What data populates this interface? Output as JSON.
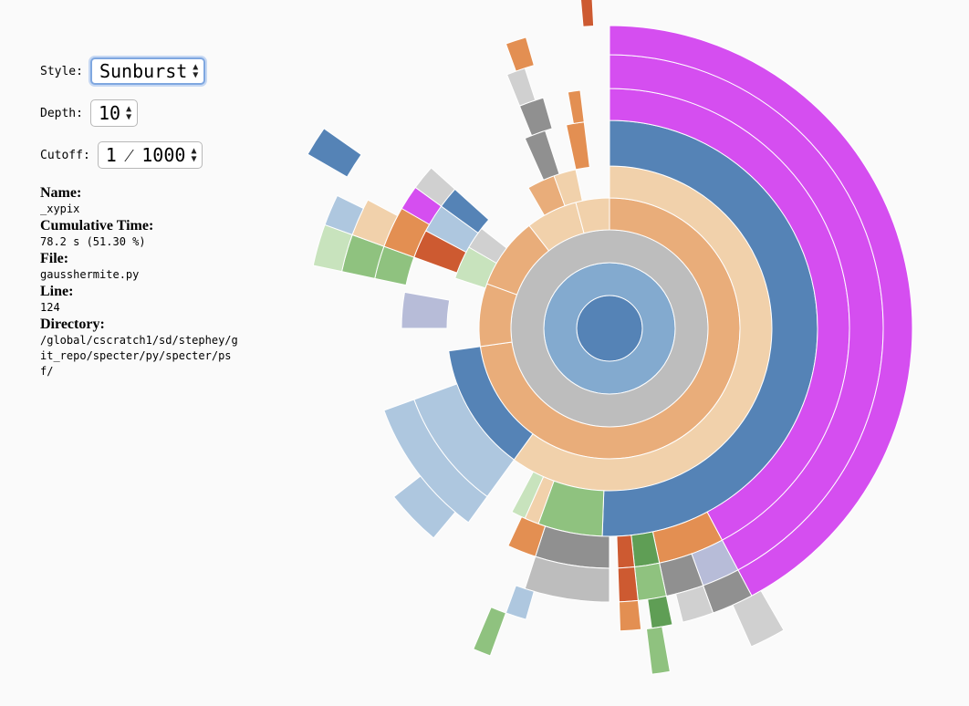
{
  "controls": {
    "style_label": "Style:",
    "style_value": "Sunburst",
    "depth_label": "Depth:",
    "depth_value": "10",
    "cutoff_label": "Cutoff:",
    "cutoff_value": "1 ⁄ 1000"
  },
  "info": {
    "name_label": "Name:",
    "name_value": "_xypix",
    "time_label": "Cumulative Time:",
    "time_value": "78.2 s (51.30 %)",
    "file_label": "File:",
    "file_value": "gausshermite.py",
    "line_label": "Line:",
    "line_value": "124",
    "dir_label": "Directory:",
    "dir_value": "/global/cscratch1/sd/stephey/git_repo/specter/py/specter/psf/"
  },
  "colors": {
    "root": "#5583b6",
    "ring1": "#83aacf",
    "gray": "#bdbdbd",
    "orange": "#e9ad7a",
    "peach": "#f1d1ab",
    "blue": "#5583b6",
    "magenta": "#d54ef0",
    "lightblue": "#aec7df",
    "green": "#8fc27f",
    "darkgray": "#909090",
    "lightgray": "#d0d0d0",
    "darkorange": "#e38f52",
    "red": "#cd5a31",
    "darkgreen": "#5f9e55",
    "lavender": "#b7bcd8",
    "purple": "#7a6fb3",
    "palegreen": "#c8e3bd"
  },
  "sunburst": {
    "segments": [
      {
        "depth": 0,
        "a0": 0,
        "a1": 360,
        "c": "root"
      },
      {
        "depth": 1,
        "a0": 0,
        "a1": 360,
        "c": "ring1"
      },
      {
        "depth": 2,
        "a0": 0,
        "a1": 360,
        "c": "gray"
      },
      {
        "depth": 3,
        "a0": 0,
        "a1": 262,
        "c": "orange"
      },
      {
        "depth": 3,
        "a0": 262,
        "a1": 290,
        "c": "orange"
      },
      {
        "depth": 3,
        "a0": 290,
        "a1": 322,
        "c": "orange"
      },
      {
        "depth": 3,
        "a0": 322,
        "a1": 345,
        "c": "peach"
      },
      {
        "depth": 3,
        "a0": 345,
        "a1": 360,
        "c": "peach"
      },
      {
        "depth": 4,
        "a0": 0,
        "a1": 216,
        "c": "peach"
      },
      {
        "depth": 4,
        "a0": 216,
        "a1": 262,
        "c": "blue"
      },
      {
        "depth": 4,
        "a0": 288,
        "a1": 300,
        "c": "palegreen"
      },
      {
        "depth": 4,
        "a0": 300,
        "a1": 308,
        "c": "lightgray"
      },
      {
        "depth": 4,
        "a0": 330,
        "a1": 340,
        "c": "orange"
      },
      {
        "depth": 4,
        "a0": 340,
        "a1": 348,
        "c": "peach"
      },
      {
        "depth": 5,
        "a0": 0,
        "a1": 182,
        "c": "blue"
      },
      {
        "depth": 5,
        "a0": 182,
        "a1": 200,
        "c": "green"
      },
      {
        "depth": 5,
        "a0": 200,
        "a1": 204,
        "c": "peach"
      },
      {
        "depth": 5,
        "a0": 204,
        "a1": 208,
        "c": "palegreen"
      },
      {
        "depth": 5,
        "a0": 216,
        "a1": 250,
        "c": "lightblue"
      },
      {
        "depth": 5,
        "a0": 270,
        "a1": 280,
        "c": "lavender"
      },
      {
        "depth": 5,
        "a0": 290,
        "a1": 298,
        "c": "red"
      },
      {
        "depth": 5,
        "a0": 298,
        "a1": 306,
        "c": "lightblue"
      },
      {
        "depth": 5,
        "a0": 306,
        "a1": 312,
        "c": "blue"
      },
      {
        "depth": 5,
        "a0": 336,
        "a1": 342,
        "c": "darkgray"
      },
      {
        "depth": 5,
        "a0": 348,
        "a1": 353,
        "c": "darkorange"
      },
      {
        "depth": 6,
        "a0": 0,
        "a1": 152,
        "c": "magenta"
      },
      {
        "depth": 6,
        "a0": 152,
        "a1": 168,
        "c": "darkorange"
      },
      {
        "depth": 6,
        "a0": 168,
        "a1": 174,
        "c": "darkgreen"
      },
      {
        "depth": 6,
        "a0": 174,
        "a1": 178,
        "c": "red"
      },
      {
        "depth": 6,
        "a0": 180,
        "a1": 198,
        "c": "darkgray"
      },
      {
        "depth": 6,
        "a0": 198,
        "a1": 205,
        "c": "darkorange"
      },
      {
        "depth": 6,
        "a0": 216,
        "a1": 250,
        "c": "lightblue"
      },
      {
        "depth": 6,
        "a0": 282,
        "a1": 290,
        "c": "green"
      },
      {
        "depth": 6,
        "a0": 290,
        "a1": 300,
        "c": "darkorange"
      },
      {
        "depth": 6,
        "a0": 300,
        "a1": 306,
        "c": "magenta"
      },
      {
        "depth": 6,
        "a0": 306,
        "a1": 312,
        "c": "lightgray"
      },
      {
        "depth": 6,
        "a0": 338,
        "a1": 344,
        "c": "darkgray"
      },
      {
        "depth": 6,
        "a0": 350,
        "a1": 353,
        "c": "darkorange"
      },
      {
        "depth": 7,
        "a0": 0,
        "a1": 152,
        "c": "magenta"
      },
      {
        "depth": 7,
        "a0": 152,
        "a1": 160,
        "c": "lavender"
      },
      {
        "depth": 7,
        "a0": 160,
        "a1": 168,
        "c": "darkgray"
      },
      {
        "depth": 7,
        "a0": 168,
        "a1": 174,
        "c": "green"
      },
      {
        "depth": 7,
        "a0": 174,
        "a1": 178,
        "c": "red"
      },
      {
        "depth": 7,
        "a0": 180,
        "a1": 198,
        "c": "gray"
      },
      {
        "depth": 7,
        "a0": 220,
        "a1": 232,
        "c": "lightblue"
      },
      {
        "depth": 7,
        "a0": 282,
        "a1": 290,
        "c": "green"
      },
      {
        "depth": 7,
        "a0": 290,
        "a1": 298,
        "c": "peach"
      },
      {
        "depth": 7,
        "a0": 338,
        "a1": 342,
        "c": "lightgray"
      },
      {
        "depth": 8,
        "a0": 0,
        "a1": 152,
        "c": "magenta"
      },
      {
        "depth": 8,
        "a0": 152,
        "a1": 160,
        "c": "darkgray"
      },
      {
        "depth": 8,
        "a0": 160,
        "a1": 166,
        "c": "lightgray"
      },
      {
        "depth": 8,
        "a0": 168,
        "a1": 172,
        "c": "darkgreen"
      },
      {
        "depth": 8,
        "a0": 174,
        "a1": 178,
        "c": "darkorange"
      },
      {
        "depth": 8,
        "a0": 196,
        "a1": 200,
        "c": "lightblue"
      },
      {
        "depth": 8,
        "a0": 282,
        "a1": 290,
        "c": "palegreen"
      },
      {
        "depth": 8,
        "a0": 290,
        "a1": 296,
        "c": "lightblue"
      },
      {
        "depth": 8,
        "a0": 340,
        "a1": 344,
        "c": "darkorange"
      },
      {
        "depth": 9,
        "a0": 150,
        "a1": 156,
        "c": "lightgray"
      },
      {
        "depth": 9,
        "a0": 170,
        "a1": 173,
        "c": "green"
      },
      {
        "depth": 9,
        "a0": 200,
        "a1": 203,
        "c": "green"
      },
      {
        "depth": 9,
        "a0": 300,
        "a1": 305,
        "c": "blue"
      },
      {
        "depth": 9,
        "a0": 355,
        "a1": 357,
        "c": "red"
      }
    ]
  }
}
